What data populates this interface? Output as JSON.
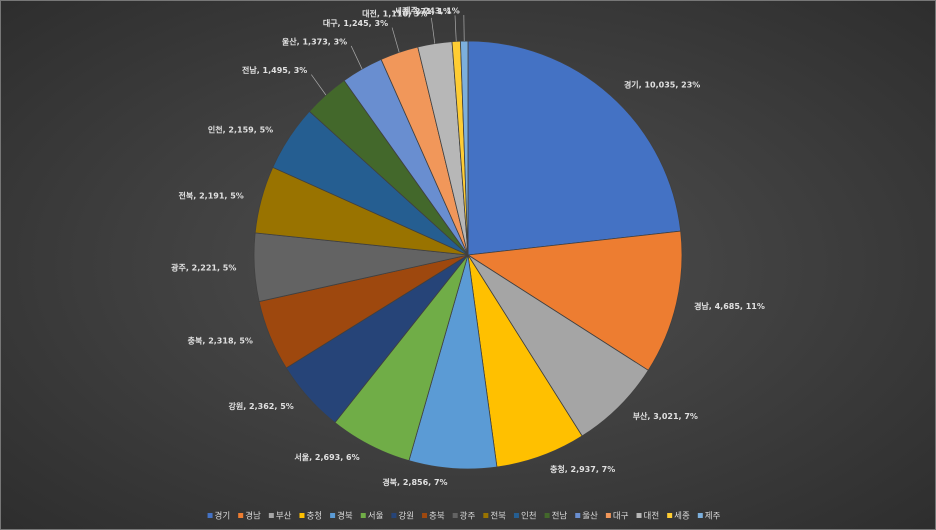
{
  "chart_data": {
    "type": "pie",
    "categories": [
      "경기",
      "경남",
      "부산",
      "충청",
      "경북",
      "서울",
      "강원",
      "충북",
      "광주",
      "전북",
      "인천",
      "전남",
      "울산",
      "대구",
      "대전",
      "세종",
      "제주"
    ],
    "values": [
      10035,
      4685,
      3021,
      2937,
      2856,
      2693,
      2362,
      2318,
      2221,
      2191,
      2159,
      1495,
      1373,
      1245,
      1116,
      271,
      243
    ],
    "value_labels": [
      "경기, 10,035, 23%",
      "경남, 4,685, 11%",
      "부산, 3,021, 7%",
      "충청, 2,937, 7%",
      "경북, 2,856, 7%",
      "서울, 2,693, 6%",
      "강원, 2,362, 5%",
      "충북, 2,318, 5%",
      "광주, 2,221, 5%",
      "전북, 2,191, 5%",
      "인천, 2,159, 5%",
      "전남, 1,495, 3%",
      "울산, 1,373, 3%",
      "대구, 1,245, 3%",
      "대전, 1,116, 3%",
      "세종, 271, 1%",
      "제주, 243, 1%"
    ],
    "colors": [
      "#4472c4",
      "#ed7d31",
      "#a5a5a5",
      "#ffc000",
      "#5b9bd5",
      "#70ad47",
      "#264478",
      "#9e480e",
      "#636363",
      "#997300",
      "#255e91",
      "#43682b",
      "#698ed0",
      "#f1975a",
      "#b7b7b7",
      "#ffcd33",
      "#7cafdd"
    ],
    "legend": "bottom"
  }
}
